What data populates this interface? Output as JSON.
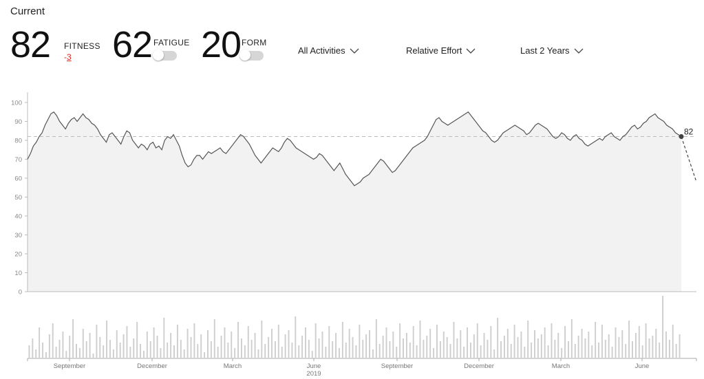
{
  "header": {
    "title": "Current",
    "fitness": {
      "value": "82",
      "label": "FITNESS",
      "delta_sign": "-",
      "delta_value": "3"
    },
    "fatigue": {
      "value": "62",
      "label": "FATIGUE",
      "toggle_on": false
    },
    "form": {
      "value": "20",
      "label": "FORM",
      "toggle_on": false
    }
  },
  "filters": {
    "activity": "All Activities",
    "metric": "Relative Effort",
    "range": "Last 2 Years"
  },
  "colors": {
    "line": "#555555",
    "fill": "#f2f2f2",
    "dashed": "#bbbbbb",
    "bars": "#cfcfcf",
    "accent_negative": "#e0261b"
  },
  "icons": {
    "dropdown": "chevron-down-icon"
  },
  "chart_data": {
    "type": "area",
    "ylim": [
      0,
      100
    ],
    "yticks": [
      "0",
      "10",
      "20",
      "30",
      "40",
      "50",
      "60",
      "70",
      "80",
      "90",
      "100"
    ],
    "grid": false,
    "current_value_label": "82",
    "reference_line": 82,
    "x_tick_labels": [
      "September",
      "December",
      "March",
      "June",
      "September",
      "December",
      "March",
      "June"
    ],
    "x_year_label": "2019",
    "series": [
      {
        "values": [
          70,
          73,
          77,
          79,
          82,
          84,
          88,
          91,
          94,
          95,
          93,
          90,
          88,
          86,
          89,
          91,
          92,
          90,
          92,
          94,
          92,
          91,
          89,
          88,
          86,
          83,
          81,
          79,
          83,
          84,
          82,
          80,
          78,
          82,
          85,
          84,
          80,
          78,
          76,
          78,
          77,
          75,
          78,
          79,
          76,
          77,
          75,
          80,
          82,
          81,
          83,
          80,
          77,
          72,
          68,
          66,
          67,
          70,
          72,
          72,
          70,
          72,
          74,
          73,
          74,
          75,
          76,
          74,
          73,
          75,
          77,
          79,
          81,
          83,
          82,
          80,
          78,
          75,
          72,
          70,
          68,
          70,
          72,
          74,
          76,
          75,
          74,
          76,
          79,
          81,
          80,
          78,
          76,
          75,
          74,
          73,
          72,
          71,
          70,
          71,
          73,
          72,
          70,
          68,
          66,
          64,
          66,
          68,
          65,
          62,
          60,
          58,
          56,
          57,
          58,
          60,
          61,
          62,
          64,
          66,
          68,
          70,
          69,
          67,
          65,
          63,
          64,
          66,
          68,
          70,
          72,
          74,
          76,
          77,
          78,
          79,
          80,
          82,
          85,
          88,
          91,
          92,
          90,
          89,
          88,
          89,
          90,
          91,
          92,
          93,
          94,
          95,
          93,
          91,
          89,
          87,
          85,
          84,
          82,
          80,
          79,
          80,
          82,
          84,
          85,
          86,
          87,
          88,
          87,
          86,
          85,
          83,
          84,
          86,
          88,
          89,
          88,
          87,
          86,
          84,
          82,
          81,
          82,
          84,
          83,
          81,
          80,
          82,
          83,
          81,
          80,
          78,
          77,
          78,
          79,
          80,
          81,
          80,
          82,
          83,
          84,
          82,
          81,
          80,
          82,
          83,
          85,
          87,
          88,
          86,
          87,
          89,
          90,
          92,
          93,
          94,
          92,
          91,
          90,
          88,
          87,
          86,
          84,
          83,
          82
        ],
        "projection_end": 58
      }
    ],
    "activity_bars": [
      9,
      14,
      6,
      22,
      11,
      4,
      17,
      25,
      8,
      13,
      19,
      5,
      16,
      28,
      10,
      7,
      21,
      12,
      18,
      3,
      24,
      15,
      9,
      27,
      13,
      6,
      20,
      11,
      17,
      23,
      8,
      14,
      26,
      10,
      5,
      19,
      12,
      22,
      16,
      7,
      29,
      11,
      18,
      9,
      24,
      13,
      6,
      21,
      15,
      25,
      10,
      17,
      4,
      20,
      12,
      28,
      8,
      16,
      22,
      11,
      19,
      7,
      26,
      14,
      9,
      23,
      13,
      18,
      6,
      27,
      10,
      15,
      21,
      12,
      24,
      8,
      17,
      20,
      11,
      30,
      9,
      16,
      22,
      13,
      5,
      25,
      14,
      19,
      8,
      23,
      12,
      18,
      7,
      26,
      11,
      21,
      15,
      9,
      24,
      13,
      17,
      20,
      6,
      28,
      10,
      16,
      22,
      12,
      19,
      8,
      25,
      14,
      18,
      11,
      23,
      9,
      27,
      13,
      16,
      21,
      7,
      24,
      12,
      19,
      15,
      10,
      26,
      14,
      20,
      8,
      22,
      11,
      17,
      25,
      9,
      18,
      13,
      23,
      6,
      29,
      12,
      16,
      21,
      10,
      24,
      15,
      19,
      8,
      27,
      11,
      20,
      14,
      17,
      22,
      9,
      25,
      13,
      18,
      7,
      23,
      12,
      28,
      10,
      16,
      21,
      14,
      19,
      9,
      26,
      11,
      24,
      13,
      17,
      8,
      22,
      15,
      20,
      10,
      27,
      12,
      18,
      23,
      9,
      25,
      14,
      16,
      21,
      11,
      45,
      19,
      13,
      24,
      10,
      17
    ]
  }
}
